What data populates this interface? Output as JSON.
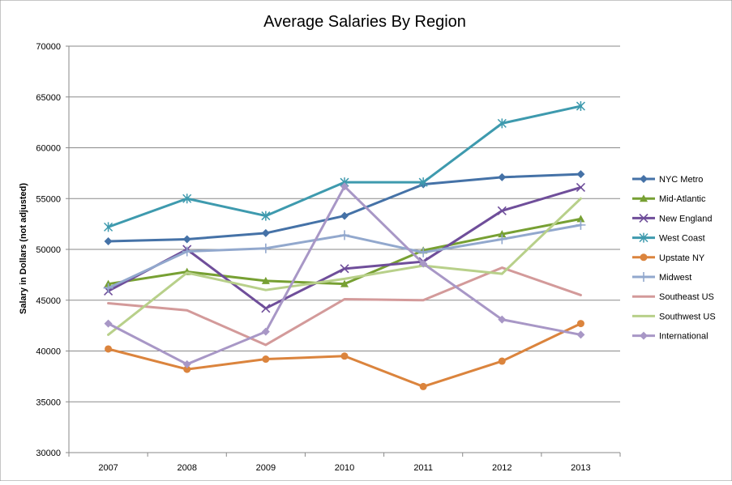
{
  "chart_data": {
    "type": "line",
    "title": "Average Salaries By Region",
    "xlabel": "",
    "ylabel": "Salary in Dollars (not adjusted)",
    "categories": [
      "2007",
      "2008",
      "2009",
      "2010",
      "2011",
      "2012",
      "2013"
    ],
    "ylim": [
      30000,
      70000
    ],
    "yticks": [
      30000,
      35000,
      40000,
      45000,
      50000,
      55000,
      60000,
      65000,
      70000
    ],
    "grid": true,
    "legend": "right",
    "series": [
      {
        "name": "NYC Metro",
        "color": "#4572A7",
        "marker": "diamond",
        "values": [
          50800,
          51000,
          51600,
          53300,
          56400,
          57100,
          57400
        ]
      },
      {
        "name": "Mid-Atlantic",
        "color": "#77A033",
        "marker": "triangle",
        "values": [
          46600,
          47800,
          46900,
          46600,
          49900,
          51500,
          53000
        ]
      },
      {
        "name": "New England",
        "color": "#6F4E9A",
        "marker": "x",
        "values": [
          45900,
          50000,
          44200,
          48100,
          48800,
          53800,
          56100
        ]
      },
      {
        "name": "West Coast",
        "color": "#3E9AAE",
        "marker": "star",
        "values": [
          52200,
          55000,
          53300,
          56600,
          56600,
          62400,
          64100
        ]
      },
      {
        "name": "Upstate NY",
        "color": "#DB843D",
        "marker": "circle",
        "values": [
          40200,
          38200,
          39200,
          39500,
          36500,
          39000,
          42700
        ]
      },
      {
        "name": "Midwest",
        "color": "#92A8CD",
        "marker": "plus",
        "values": [
          46200,
          49800,
          50100,
          51400,
          49700,
          51000,
          52400
        ]
      },
      {
        "name": "Southeast US",
        "color": "#D39A9A",
        "marker": "none",
        "values": [
          44700,
          44000,
          40600,
          45100,
          45000,
          48200,
          45500
        ]
      },
      {
        "name": "Southwest US",
        "color": "#B8D08A",
        "marker": "none",
        "values": [
          41600,
          47700,
          46000,
          47100,
          48400,
          47600,
          55000
        ]
      },
      {
        "name": "International",
        "color": "#A897C6",
        "marker": "diamond",
        "values": [
          42700,
          38700,
          41900,
          56200,
          48600,
          43100,
          41600
        ]
      }
    ]
  }
}
